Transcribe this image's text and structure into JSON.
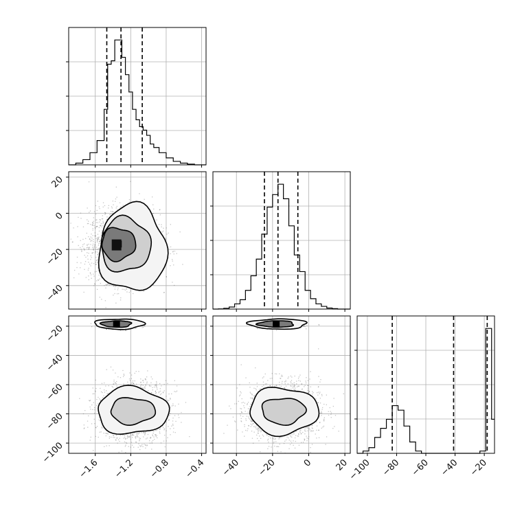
{
  "chart_data": {
    "type": "corner",
    "grid": true,
    "colors": {
      "line": "#000000",
      "grid": "#b0b0b0",
      "points": "#555555"
    },
    "params": [
      {
        "range": [
          -1.9,
          -0.35
        ],
        "ticks": [
          "−1.6",
          "−1.2",
          "−0.8",
          "−0.4"
        ],
        "tick_values": [
          -1.6,
          -1.2,
          -0.8,
          -0.4
        ]
      },
      {
        "range": [
          -53,
          23
        ],
        "ticks": [
          "−40",
          "−20",
          "0",
          "20"
        ],
        "tick_values": [
          -40,
          -20,
          0,
          20
        ]
      },
      {
        "range": [
          -107,
          -13
        ],
        "ticks": [
          "−100",
          "−80",
          "−60",
          "−40",
          "−20"
        ],
        "tick_values": [
          -100,
          -80,
          -60,
          -40,
          -20
        ]
      }
    ],
    "histograms": [
      {
        "param": 0,
        "bin_edges": [
          -1.9,
          -1.82,
          -1.74,
          -1.66,
          -1.58,
          -1.5,
          -1.46,
          -1.42,
          -1.38,
          -1.34,
          -1.3,
          -1.26,
          -1.22,
          -1.18,
          -1.14,
          -1.1,
          -1.06,
          -1.02,
          -0.98,
          -0.94,
          -0.88,
          -0.8,
          -0.72,
          -0.64,
          -0.56,
          -0.48,
          -0.4,
          -0.35
        ],
        "counts": [
          0,
          0.5,
          1.5,
          3.5,
          7,
          16,
          29,
          30,
          36,
          36,
          31,
          26,
          21,
          16,
          13,
          11,
          10,
          8.5,
          6,
          5,
          3.5,
          2,
          1,
          0.5,
          0.2,
          0,
          0
        ],
        "quantiles": [
          -1.47,
          -1.31,
          -1.07
        ]
      },
      {
        "param": 1,
        "bin_edges": [
          -53,
          -50,
          -47,
          -44,
          -41,
          -38,
          -35,
          -32,
          -29,
          -26,
          -23,
          -20,
          -17,
          -14,
          -11,
          -8,
          -5,
          -2,
          1,
          4,
          7,
          10,
          13,
          16,
          19,
          23
        ],
        "counts": [
          0,
          0.1,
          0.4,
          1,
          2.5,
          4.5,
          9,
          16,
          24,
          36,
          49,
          55,
          60,
          53,
          40,
          26,
          18,
          9,
          5,
          2.5,
          1.3,
          0.5,
          0.2,
          0,
          0
        ],
        "quantiles": [
          -24.5,
          -17,
          -6
        ]
      },
      {
        "param": 2,
        "bin_edges": [
          -107,
          -103,
          -99,
          -95,
          -91,
          -87,
          -83,
          -79,
          -75,
          -71,
          -67,
          -63,
          -59,
          -55,
          -51,
          -47,
          -43,
          -39,
          -35,
          -31,
          -27,
          -23,
          -19,
          -15,
          -13
        ],
        "counts": [
          0,
          0.2,
          0.5,
          1.4,
          2.2,
          3,
          4.2,
          3.8,
          2.4,
          1,
          0.2,
          0,
          0,
          0,
          0,
          0,
          0,
          0,
          0,
          0,
          0,
          0.2,
          11,
          3
        ],
        "quantiles": [
          -83,
          -41,
          -18
        ]
      }
    ],
    "scatter_panels": [
      {
        "x_param": 0,
        "y_param": 1,
        "clusters": [
          {
            "center": [
              -1.28,
              -18
            ],
            "sd": [
              0.2,
              10
            ],
            "n": 2400
          }
        ],
        "contours": [
          {
            "center": [
              -1.18,
              -19.5
            ],
            "radii": [
              0.38,
              24
            ],
            "level": 0.0
          },
          {
            "center": [
              -1.26,
              -17.5
            ],
            "radii": [
              0.28,
              15
            ],
            "level": 0.2
          },
          {
            "center": [
              -1.34,
              -17
            ],
            "radii": [
              0.19,
              9
            ],
            "level": 0.5
          }
        ]
      },
      {
        "x_param": 0,
        "y_param": 2,
        "clusters": [
          {
            "center": [
              -1.33,
              -19
            ],
            "sd": [
              0.11,
              1.2
            ],
            "n": 500
          },
          {
            "center": [
              -1.18,
              -78
            ],
            "sd": [
              0.2,
              10
            ],
            "n": 1800
          }
        ],
        "contours": [
          {
            "center": [
              -1.18,
              -78
            ],
            "radii": [
              0.4,
              16
            ],
            "level": 0.0
          },
          {
            "center": [
              -1.18,
              -78
            ],
            "radii": [
              0.25,
              9
            ],
            "level": 0.2
          },
          {
            "center": [
              -1.33,
              -18.5
            ],
            "radii": [
              0.28,
              3.5
            ],
            "level": 0.0
          },
          {
            "center": [
              -1.36,
              -18.5
            ],
            "radii": [
              0.17,
              2.2
            ],
            "level": 0.3
          }
        ]
      },
      {
        "x_param": 1,
        "y_param": 2,
        "clusters": [
          {
            "center": [
              -16,
              -19
            ],
            "sd": [
              6,
              1.2
            ],
            "n": 500
          },
          {
            "center": [
              -14,
              -78
            ],
            "sd": [
              10,
              10
            ],
            "n": 1800
          }
        ],
        "contours": [
          {
            "center": [
              -14,
              -78
            ],
            "radii": [
              19,
              16
            ],
            "level": 0.0
          },
          {
            "center": [
              -14,
              -78
            ],
            "radii": [
              12,
              9
            ],
            "level": 0.2
          },
          {
            "center": [
              -17,
              -18.5
            ],
            "radii": [
              16,
              3.5
            ],
            "level": 0.0
          },
          {
            "center": [
              -18,
              -18.5
            ],
            "radii": [
              10,
              2.2
            ],
            "level": 0.3
          }
        ]
      }
    ]
  }
}
